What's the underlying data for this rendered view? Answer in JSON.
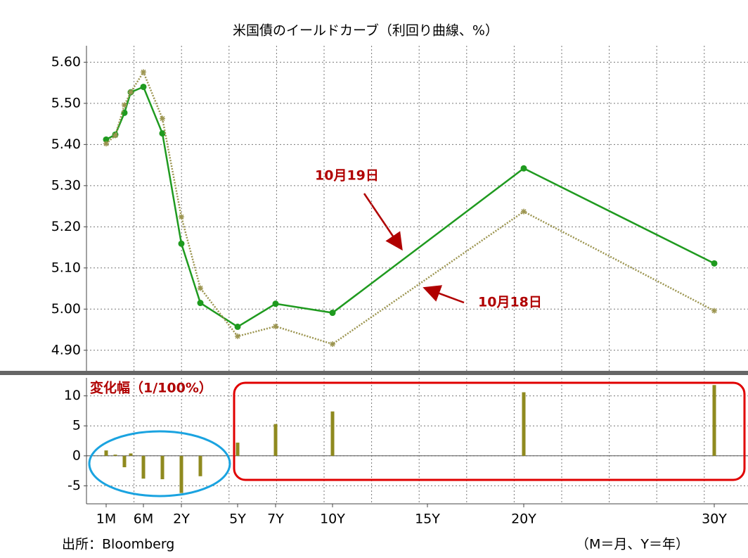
{
  "chart_data": [
    {
      "type": "line",
      "title": "米国債のイールドカーブ（利回り曲線、%）",
      "xticks": [
        "1M",
        "6M",
        "2Y",
        "5Y",
        "7Y",
        "10Y",
        "15Y",
        "20Y",
        "30Y"
      ],
      "ylim": [
        4.85,
        5.64
      ],
      "yticks": [
        {
          "value": 5.6,
          "label": "5.60"
        },
        {
          "value": 5.5,
          "label": "5.50"
        },
        {
          "value": 5.4,
          "label": "5.40"
        },
        {
          "value": 5.3,
          "label": "5.30"
        },
        {
          "value": 5.2,
          "label": "5.20"
        },
        {
          "value": 5.1,
          "label": "5.10"
        },
        {
          "value": 5.0,
          "label": "5.00"
        },
        {
          "value": 4.9,
          "label": "4.90"
        }
      ],
      "grid": true,
      "series": [
        {
          "name": "10月19日",
          "color": "#1f9a1f",
          "style": "solid",
          "values": [
            5.412,
            5.424,
            5.477,
            5.527,
            5.54,
            5.427,
            5.159,
            5.015,
            4.957,
            5.013,
            4.991,
            5.342,
            5.111
          ]
        },
        {
          "name": "10月18日",
          "color": "#9c9550",
          "style": "dotted",
          "values": [
            5.402,
            5.422,
            5.496,
            5.527,
            5.576,
            5.463,
            5.224,
            5.051,
            4.934,
            4.958,
            4.915,
            5.237,
            4.996
          ]
        }
      ],
      "source": "出所：Bloomberg",
      "note": "（M＝月、Y＝年）"
    },
    {
      "type": "bar",
      "label": "変化幅（1/100%）",
      "color": "#8f8a1f",
      "values": [
        0.9,
        0.2,
        -1.9,
        0.4,
        -3.8,
        -3.9,
        -6.2,
        -3.4,
        2.2,
        5.3,
        7.4,
        10.6,
        11.8
      ],
      "ylim": [
        -8,
        13
      ],
      "yticks": [
        10,
        5,
        0,
        -5
      ],
      "grid": true
    }
  ]
}
